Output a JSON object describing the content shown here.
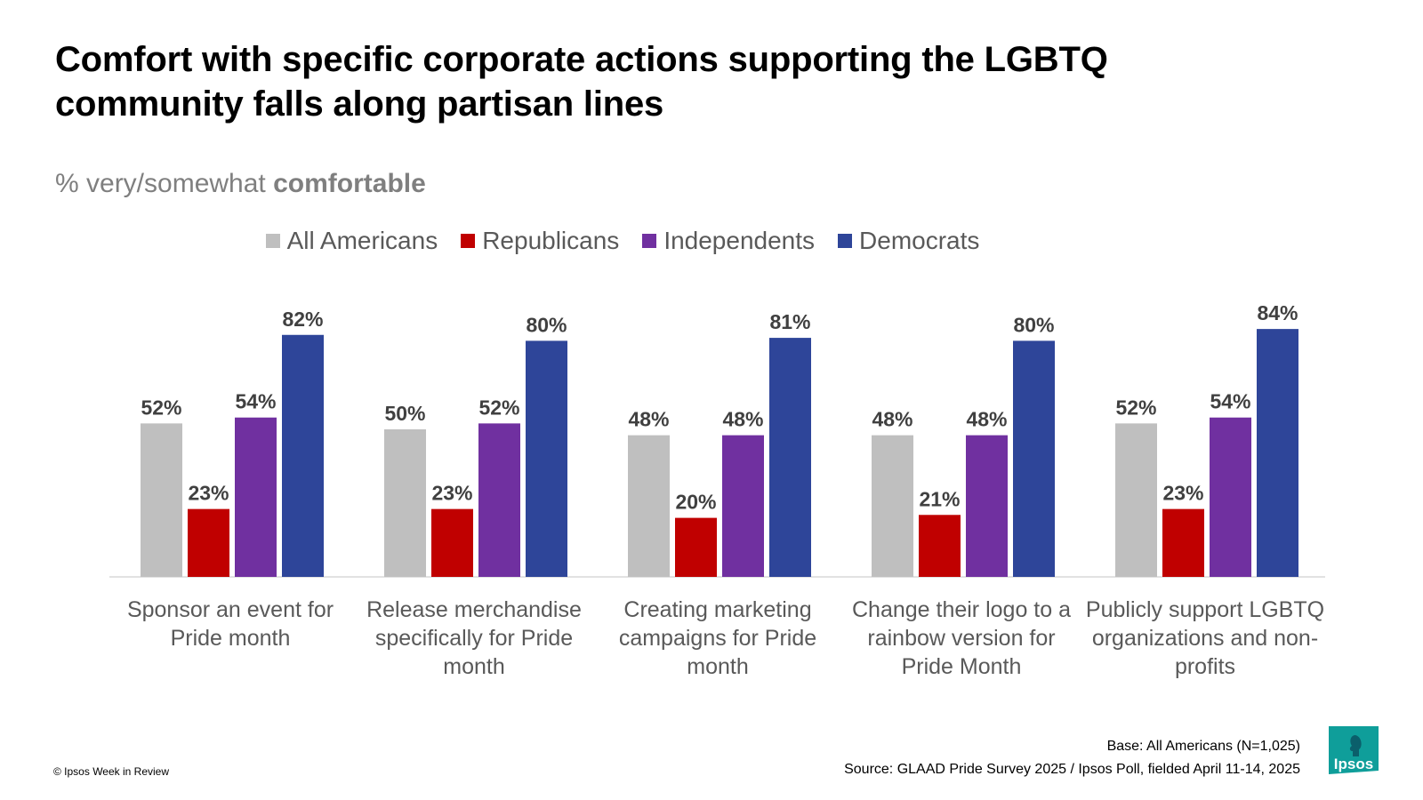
{
  "title_line1": "Comfort with specific corporate actions supporting the LGBTQ",
  "title_line2": "community falls along partisan lines",
  "subtitle_prefix": "% very/somewhat ",
  "subtitle_bold": "comfortable",
  "colors": {
    "all_americans": "#bfbfbf",
    "republicans": "#c00000",
    "independents": "#7030a0",
    "democrats": "#2e4599",
    "axis": "#d9d9d9",
    "label": "#404040",
    "category": "#595959",
    "logo": "#0f9e9a"
  },
  "chart_data": {
    "type": "bar",
    "categories": [
      [
        "Sponsor an event for",
        "Pride month"
      ],
      [
        "Release merchandise",
        "specifically for Pride",
        "month"
      ],
      [
        "Creating marketing",
        "campaigns for Pride",
        "month"
      ],
      [
        "Change their logo to a",
        "rainbow version for",
        "Pride Month"
      ],
      [
        "Publicly support LGBTQ",
        "organizations and non-",
        "profits"
      ]
    ],
    "series": [
      {
        "name": "All Americans",
        "color_key": "all_americans",
        "values": [
          52,
          50,
          48,
          48,
          52
        ]
      },
      {
        "name": "Republicans",
        "color_key": "republicans",
        "values": [
          23,
          23,
          20,
          21,
          23
        ]
      },
      {
        "name": "Independents",
        "color_key": "independents",
        "values": [
          54,
          52,
          48,
          48,
          54
        ]
      },
      {
        "name": "Democrats",
        "color_key": "democrats",
        "values": [
          82,
          80,
          81,
          80,
          84
        ]
      }
    ],
    "value_suffix": "%",
    "ylim": [
      0,
      100
    ],
    "legend": "top-center",
    "grid": false
  },
  "footer": {
    "base": "Base: All Americans (N=1,025)",
    "source": "Source: GLAAD Pride Survey 2025 / Ipsos Poll, fielded April 11-14, 2025",
    "copyright": "© Ipsos Week in Review",
    "logo_text": "Ipsos"
  }
}
